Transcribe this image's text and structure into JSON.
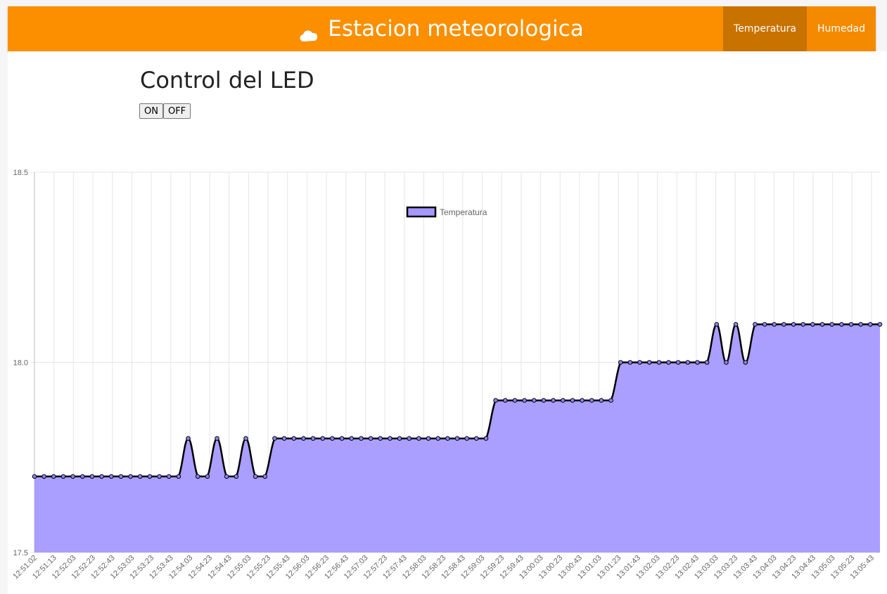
{
  "navbar": {
    "title": "Estacion meteorologica",
    "icon": "cloud-icon",
    "tabs": [
      {
        "label": "Temperatura",
        "active": true
      },
      {
        "label": "Humedad",
        "active": false
      }
    ],
    "color": "#fb8f00"
  },
  "led": {
    "title": "Control del LED",
    "on_label": "ON",
    "off_label": "OFF"
  },
  "chart_data": {
    "type": "area",
    "legend": {
      "label": "Temperatura",
      "position": "top"
    },
    "ylim": [
      17.5,
      18.5
    ],
    "yticks": [
      "18.5",
      "18.0",
      "17.5"
    ],
    "grid": true,
    "fill_color": "#a599ff",
    "line_color": "#000000",
    "x_labels": [
      "12:51:02",
      "12:51:13",
      "12:52:03",
      "12:52:23",
      "12:52:43",
      "12:53:03",
      "12:53:23",
      "12:53:43",
      "12:54:03",
      "12:54:23",
      "12:54:43",
      "12:55:03",
      "12:55:23",
      "12:55:43",
      "12:56:03",
      "12:56:23",
      "12:56:43",
      "12:57:03",
      "12:57:23",
      "12:57:43",
      "12:58:03",
      "12:58:23",
      "12:58:43",
      "12:59:03",
      "12:59:23",
      "12:59:43",
      "13:00:03",
      "13:00:23",
      "13:00:43",
      "13:01:03",
      "13:01:23",
      "13:01:43",
      "13:02:03",
      "13:02:23",
      "13:02:43",
      "13:03:03",
      "13:03:23",
      "13:03:43",
      "13:04:03",
      "13:04:23",
      "13:04:43",
      "13:05:03",
      "13:05:23",
      "13:05:43"
    ],
    "series": [
      {
        "name": "Temperatura",
        "values": [
          17.7,
          17.7,
          17.7,
          17.7,
          17.7,
          17.7,
          17.7,
          17.7,
          17.7,
          17.7,
          17.7,
          17.7,
          17.7,
          17.7,
          17.7,
          17.7,
          17.8,
          17.7,
          17.7,
          17.8,
          17.7,
          17.7,
          17.8,
          17.7,
          17.7,
          17.8,
          17.8,
          17.8,
          17.8,
          17.8,
          17.8,
          17.8,
          17.8,
          17.8,
          17.8,
          17.8,
          17.8,
          17.8,
          17.8,
          17.8,
          17.8,
          17.8,
          17.8,
          17.8,
          17.8,
          17.8,
          17.8,
          17.8,
          17.9,
          17.9,
          17.9,
          17.9,
          17.9,
          17.9,
          17.9,
          17.9,
          17.9,
          17.9,
          17.9,
          17.9,
          17.9,
          18.0,
          18.0,
          18.0,
          18.0,
          18.0,
          18.0,
          18.0,
          18.0,
          18.0,
          18.0,
          18.1,
          18.0,
          18.1,
          18.0,
          18.1,
          18.1,
          18.1,
          18.1,
          18.1,
          18.1,
          18.1,
          18.1,
          18.1,
          18.1,
          18.1,
          18.1,
          18.1,
          18.1
        ]
      }
    ]
  }
}
